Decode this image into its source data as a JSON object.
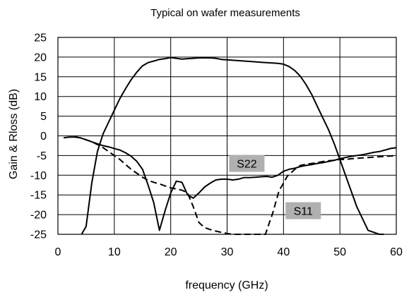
{
  "chart_data": {
    "type": "line",
    "title": "Typical on wafer measurements",
    "xlabel": "frequency (GHz)",
    "ylabel": "Gain & Rloss (dB)",
    "xlim": [
      0,
      60
    ],
    "ylim": [
      -25,
      25
    ],
    "x_ticks": [
      0,
      10,
      20,
      30,
      40,
      50,
      60
    ],
    "y_ticks": [
      25,
      20,
      15,
      10,
      5,
      0,
      -5,
      -10,
      -15,
      -20,
      -25
    ],
    "grid": true,
    "series": [
      {
        "style": "solid",
        "color": "#000000",
        "x": [
          4.2,
          5,
          6,
          7,
          8,
          9,
          10,
          11,
          12,
          13,
          14,
          15,
          16,
          17,
          18,
          19,
          20,
          21,
          22,
          23,
          24,
          25,
          26,
          27,
          28,
          29,
          30,
          31,
          32,
          33,
          34,
          35,
          36,
          37,
          38,
          39,
          40,
          41,
          42,
          43,
          44,
          45,
          46,
          47,
          48,
          49,
          50,
          51,
          52,
          53,
          54,
          55,
          56,
          57,
          57.8
        ],
        "values": [
          -25,
          -23,
          -12,
          -4,
          0.5,
          3.5,
          6.5,
          9.5,
          12,
          14.3,
          16.2,
          17.8,
          18.6,
          19,
          19.4,
          19.6,
          19.9,
          19.7,
          19.5,
          19.6,
          19.7,
          19.8,
          19.8,
          19.8,
          19.7,
          19.4,
          19.3,
          19.2,
          19.1,
          19.0,
          18.9,
          18.8,
          18.7,
          18.6,
          18.5,
          18.4,
          18.2,
          17.6,
          16.6,
          15.1,
          13,
          10.5,
          7.5,
          4.5,
          1.5,
          -2,
          -6,
          -10,
          -14,
          -18,
          -21,
          -24,
          -24.5,
          -25,
          -25
        ]
      },
      {
        "name": "S22",
        "style": "solid",
        "color": "#000000",
        "x": [
          1,
          2,
          3,
          4,
          5,
          6,
          7,
          8,
          9,
          10,
          11,
          12,
          13,
          14,
          15,
          16,
          17,
          18,
          19,
          20,
          21,
          22,
          23,
          24,
          25,
          26,
          27,
          28,
          29,
          30,
          31,
          32,
          33,
          34,
          35,
          36,
          37,
          38,
          39,
          40,
          41,
          42,
          43,
          44,
          45,
          46,
          47,
          48,
          49,
          50,
          51,
          52,
          53,
          54,
          55,
          56,
          57,
          58,
          59,
          60
        ],
        "values": [
          -0.5,
          -0.3,
          -0.3,
          -0.5,
          -1,
          -1.5,
          -2,
          -2.5,
          -2.8,
          -3.2,
          -3.6,
          -4.3,
          -5.2,
          -6.5,
          -8.5,
          -12.5,
          -17,
          -24,
          -19,
          -14.5,
          -11.5,
          -11.8,
          -15,
          -15.8,
          -14.5,
          -13,
          -12,
          -11.2,
          -11,
          -11,
          -11.2,
          -11,
          -10.6,
          -10.6,
          -10.5,
          -10.4,
          -10.3,
          -10.5,
          -10,
          -9,
          -8.5,
          -8.2,
          -7.8,
          -7.5,
          -7.3,
          -7,
          -6.8,
          -6.5,
          -6.2,
          -5.8,
          -5.5,
          -5.2,
          -5,
          -4.8,
          -4.5,
          -4.2,
          -4,
          -3.6,
          -3.2,
          -3
        ]
      },
      {
        "name": "S11",
        "style": "dashed",
        "color": "#000000",
        "x": [
          3,
          4,
          5,
          6,
          7,
          8,
          9,
          10,
          11,
          12,
          13,
          14,
          15,
          16,
          17,
          18,
          19,
          20,
          21,
          22,
          23,
          24,
          25,
          26,
          27,
          28,
          29,
          30,
          31,
          32,
          33,
          34,
          35,
          36,
          36.8,
          37.5,
          38,
          38.6,
          39.2,
          40,
          40.7,
          41.5,
          42,
          43,
          44,
          45,
          46,
          47,
          48,
          49,
          50,
          51,
          52,
          53,
          54,
          55,
          56,
          57,
          58,
          59,
          60
        ],
        "values": [
          -0.2,
          -0.5,
          -1,
          -1.5,
          -2.2,
          -3,
          -4,
          -5,
          -6,
          -7.3,
          -8.5,
          -9.5,
          -10.5,
          -11.3,
          -11.8,
          -12.2,
          -12.7,
          -13.2,
          -13.5,
          -13.8,
          -14.5,
          -18,
          -22,
          -23.3,
          -23.8,
          -24.2,
          -24.5,
          -24.8,
          -25,
          -25,
          -25,
          -25,
          -25,
          -25,
          -25,
          -22,
          -20,
          -17,
          -14,
          -12,
          -10.2,
          -9.2,
          -8.5,
          -7.5,
          -7.2,
          -7,
          -6.8,
          -6.5,
          -6.3,
          -6.2,
          -6,
          -6,
          -5.8,
          -5.7,
          -5.6,
          -5.5,
          -5.4,
          -5.3,
          -5.2,
          -5.1,
          -5.0
        ]
      }
    ],
    "annotations": [
      {
        "text": "S22",
        "x": 33.5,
        "y": -7,
        "box_color": "#b0b0b0"
      },
      {
        "text": "S11",
        "x": 43.5,
        "y": -19,
        "box_color": "#b0b0b0"
      }
    ]
  }
}
